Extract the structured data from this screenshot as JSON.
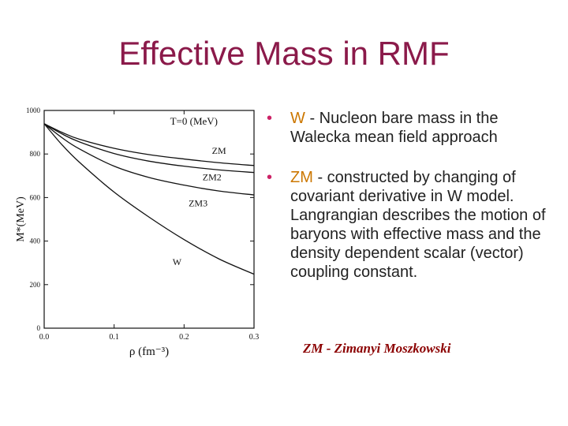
{
  "slide": {
    "title": "Effective Mass in RMF",
    "bullet_symbol": "•",
    "bullets": [
      {
        "keyword": "W",
        "text": " - Nucleon bare mass in the Walecka mean field approach"
      },
      {
        "keyword": " ZM",
        "text": " - constructed by changing of covariant derivative in W model.  Langrangian describes the motion of baryons with effective mass and the density dependent scalar (vector) coupling constant."
      }
    ],
    "caption": "ZM - Zimanyi Moszkowski"
  },
  "colors": {
    "title": "#8b1a4a",
    "keyword": "#cc7700",
    "bullet": "#cc2266",
    "caption": "#8b0000"
  },
  "chart_data": {
    "type": "line",
    "annotation": "T=0  (MeV)",
    "xlabel": "ρ (fm⁻³)",
    "ylabel": "M*(MeV)",
    "xlim": [
      0,
      0.3
    ],
    "ylim": [
      0,
      1000
    ],
    "xticks": [
      0.0,
      0.1,
      0.2,
      0.3
    ],
    "xtick_labels": [
      "0.0",
      "0.1",
      "0.2",
      "0.3"
    ],
    "yticks": [
      0,
      200,
      400,
      600,
      800,
      1000
    ],
    "ytick_labels": [
      "0",
      "200",
      "400",
      "600",
      "800",
      "1000"
    ],
    "series": [
      {
        "name": "ZM",
        "x": [
          0,
          0.025,
          0.05,
          0.1,
          0.15,
          0.2,
          0.25,
          0.3
        ],
        "values": [
          939,
          900,
          868,
          826,
          797,
          777,
          760,
          747
        ]
      },
      {
        "name": "ZM2",
        "x": [
          0,
          0.025,
          0.05,
          0.1,
          0.15,
          0.2,
          0.25,
          0.3
        ],
        "values": [
          939,
          893,
          856,
          802,
          767,
          744,
          727,
          715
        ]
      },
      {
        "name": "ZM3",
        "x": [
          0,
          0.025,
          0.05,
          0.1,
          0.15,
          0.2,
          0.25,
          0.3
        ],
        "values": [
          939,
          876,
          824,
          744,
          692,
          657,
          630,
          612
        ]
      },
      {
        "name": "W",
        "x": [
          0,
          0.025,
          0.05,
          0.1,
          0.15,
          0.2,
          0.25,
          0.3
        ],
        "values": [
          939,
          844,
          763,
          625,
          510,
          407,
          318,
          248
        ]
      }
    ],
    "series_label_positions": {
      "ZM": [
        0.25,
        800
      ],
      "ZM2": [
        0.24,
        680
      ],
      "ZM3": [
        0.22,
        560
      ],
      "W": [
        0.19,
        290
      ]
    }
  }
}
